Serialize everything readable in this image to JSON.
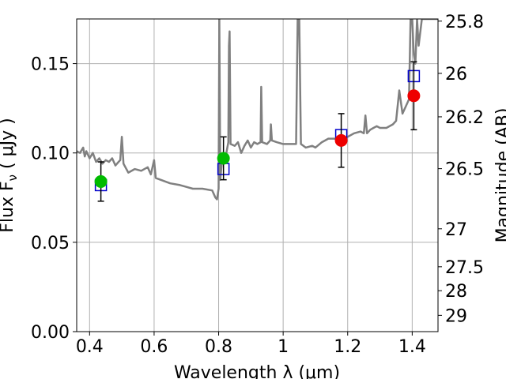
{
  "chart_data": {
    "type": "scatter",
    "title": "",
    "xlabel": "Wavelength  λ (μm)",
    "ylabel": "Flux  F",
    "ylabel_sub": "ν",
    "ylabel_unit": "  ( μJy )",
    "ylabel_right": "Magnitude (AB)",
    "xlim": [
      0.36,
      1.48
    ],
    "ylim": [
      0,
      0.175
    ],
    "grid": true,
    "x_ticks": [
      0.4,
      0.6,
      0.8,
      1.0,
      1.2,
      1.4
    ],
    "x_tick_labels": [
      "0.4",
      "0.6",
      "0.8",
      "1",
      "1.2",
      "1.4"
    ],
    "y_ticks": [
      0.0,
      0.05,
      0.1,
      0.15
    ],
    "y_tick_labels": [
      "0.00",
      "0.05",
      "0.10",
      "0.15"
    ],
    "right_ticks": [
      {
        "mag": 25.8,
        "label": "25.8"
      },
      {
        "mag": 26.0,
        "label": "26"
      },
      {
        "mag": 26.2,
        "label": "26.2"
      },
      {
        "mag": 26.5,
        "label": "26.5"
      },
      {
        "mag": 27.0,
        "label": "27"
      },
      {
        "mag": 27.5,
        "label": "27.5"
      },
      {
        "mag": 28.0,
        "label": "28"
      },
      {
        "mag": 29.0,
        "label": "29"
      }
    ],
    "spectrum": {
      "color": "#808080",
      "points": [
        [
          0.36,
          0.101
        ],
        [
          0.37,
          0.1
        ],
        [
          0.38,
          0.103
        ],
        [
          0.385,
          0.098
        ],
        [
          0.39,
          0.101
        ],
        [
          0.4,
          0.097
        ],
        [
          0.41,
          0.1
        ],
        [
          0.42,
          0.095
        ],
        [
          0.43,
          0.097
        ],
        [
          0.44,
          0.094
        ],
        [
          0.45,
          0.096
        ],
        [
          0.46,
          0.095
        ],
        [
          0.47,
          0.097
        ],
        [
          0.48,
          0.093
        ],
        [
          0.49,
          0.095
        ],
        [
          0.495,
          0.096
        ],
        [
          0.5,
          0.109
        ],
        [
          0.505,
          0.094
        ],
        [
          0.52,
          0.089
        ],
        [
          0.54,
          0.091
        ],
        [
          0.56,
          0.09
        ],
        [
          0.58,
          0.092
        ],
        [
          0.59,
          0.088
        ],
        [
          0.6,
          0.096
        ],
        [
          0.605,
          0.086
        ],
        [
          0.62,
          0.085
        ],
        [
          0.65,
          0.083
        ],
        [
          0.68,
          0.082
        ],
        [
          0.7,
          0.081
        ],
        [
          0.72,
          0.08
        ],
        [
          0.75,
          0.08
        ],
        [
          0.78,
          0.079
        ],
        [
          0.79,
          0.075
        ],
        [
          0.795,
          0.074
        ],
        [
          0.8,
          0.08
        ],
        [
          0.802,
          0.175
        ],
        [
          0.805,
          0.085
        ],
        [
          0.81,
          0.095
        ],
        [
          0.815,
          0.1
        ],
        [
          0.82,
          0.096
        ],
        [
          0.825,
          0.101
        ],
        [
          0.83,
          0.106
        ],
        [
          0.832,
          0.16
        ],
        [
          0.834,
          0.168
        ],
        [
          0.837,
          0.105
        ],
        [
          0.85,
          0.104
        ],
        [
          0.86,
          0.106
        ],
        [
          0.87,
          0.1
        ],
        [
          0.88,
          0.104
        ],
        [
          0.89,
          0.107
        ],
        [
          0.9,
          0.103
        ],
        [
          0.91,
          0.106
        ],
        [
          0.92,
          0.105
        ],
        [
          0.93,
          0.106
        ],
        [
          0.932,
          0.137
        ],
        [
          0.935,
          0.106
        ],
        [
          0.95,
          0.105
        ],
        [
          0.96,
          0.107
        ],
        [
          0.962,
          0.116
        ],
        [
          0.965,
          0.107
        ],
        [
          0.98,
          0.106
        ],
        [
          1.0,
          0.105
        ],
        [
          1.02,
          0.105
        ],
        [
          1.04,
          0.105
        ],
        [
          1.045,
          0.175
        ],
        [
          1.05,
          0.175
        ],
        [
          1.055,
          0.105
        ],
        [
          1.07,
          0.103
        ],
        [
          1.09,
          0.104
        ],
        [
          1.1,
          0.103
        ],
        [
          1.12,
          0.106
        ],
        [
          1.14,
          0.108
        ],
        [
          1.16,
          0.108
        ],
        [
          1.18,
          0.107
        ],
        [
          1.2,
          0.109
        ],
        [
          1.22,
          0.111
        ],
        [
          1.24,
          0.112
        ],
        [
          1.25,
          0.111
        ],
        [
          1.255,
          0.121
        ],
        [
          1.26,
          0.111
        ],
        [
          1.27,
          0.113
        ],
        [
          1.28,
          0.114
        ],
        [
          1.29,
          0.115
        ],
        [
          1.3,
          0.114
        ],
        [
          1.32,
          0.114
        ],
        [
          1.34,
          0.116
        ],
        [
          1.35,
          0.118
        ],
        [
          1.36,
          0.135
        ],
        [
          1.37,
          0.122
        ],
        [
          1.38,
          0.126
        ],
        [
          1.39,
          0.13
        ],
        [
          1.395,
          0.175
        ],
        [
          1.4,
          0.175
        ],
        [
          1.405,
          0.155
        ],
        [
          1.41,
          0.15
        ],
        [
          1.415,
          0.175
        ],
        [
          1.42,
          0.16
        ],
        [
          1.43,
          0.175
        ],
        [
          1.44,
          0.175
        ],
        [
          1.45,
          0.175
        ],
        [
          1.46,
          0.175
        ],
        [
          1.48,
          0.175
        ]
      ]
    },
    "series": [
      {
        "marker": "circle",
        "color_green": "#00bb00",
        "color_red": "#ee0000",
        "points": [
          {
            "x": 0.435,
            "y": 0.084,
            "err": 0.011,
            "color": "green"
          },
          {
            "x": 0.815,
            "y": 0.097,
            "err": 0.012,
            "color": "green"
          },
          {
            "x": 1.18,
            "y": 0.107,
            "err": 0.015,
            "color": "red"
          },
          {
            "x": 1.405,
            "y": 0.132,
            "err": 0.019,
            "color": "red"
          }
        ]
      },
      {
        "marker": "square",
        "color": "#0000cc",
        "points": [
          {
            "x": 0.435,
            "y": 0.082
          },
          {
            "x": 0.815,
            "y": 0.091
          },
          {
            "x": 1.18,
            "y": 0.11
          },
          {
            "x": 1.405,
            "y": 0.143
          }
        ]
      }
    ]
  }
}
